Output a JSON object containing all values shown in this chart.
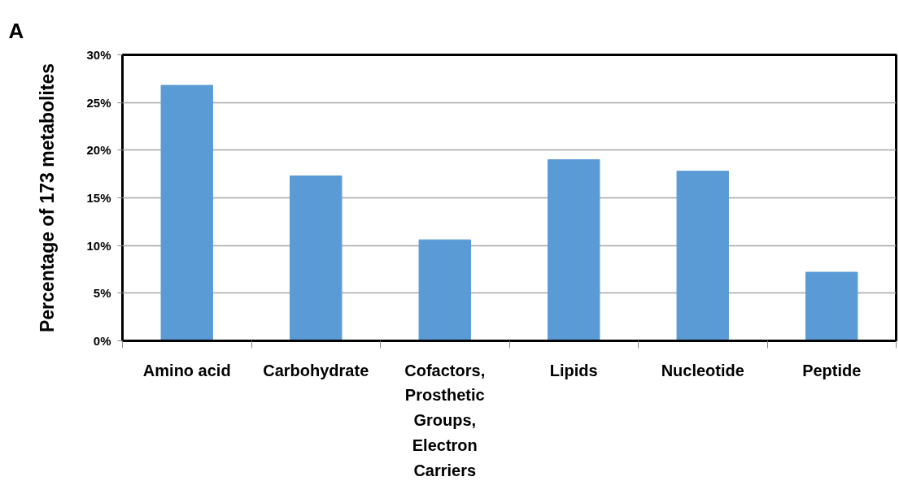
{
  "chart_data": {
    "type": "bar",
    "title": "A",
    "ylabel": "Percentage of 173 metabolites",
    "categories": [
      "Amino acid",
      "Carbohydrate",
      "Cofactors, Prosthetic Groups, Electron Carriers",
      "Lipids",
      "Nucleotide",
      "Peptide"
    ],
    "values": [
      26.8,
      17.3,
      10.6,
      19.0,
      17.8,
      7.2
    ],
    "color": "#5b9bd5",
    "ylim": [
      0,
      30
    ],
    "yticks": [
      {
        "value": 0,
        "label": "0%"
      },
      {
        "value": 5,
        "label": "5%"
      },
      {
        "value": 10,
        "label": "10%"
      },
      {
        "value": 15,
        "label": "15%"
      },
      {
        "value": 20,
        "label": "20%"
      },
      {
        "value": 25,
        "label": "25%"
      },
      {
        "value": 30,
        "label": "30%"
      }
    ],
    "grid": "y"
  }
}
